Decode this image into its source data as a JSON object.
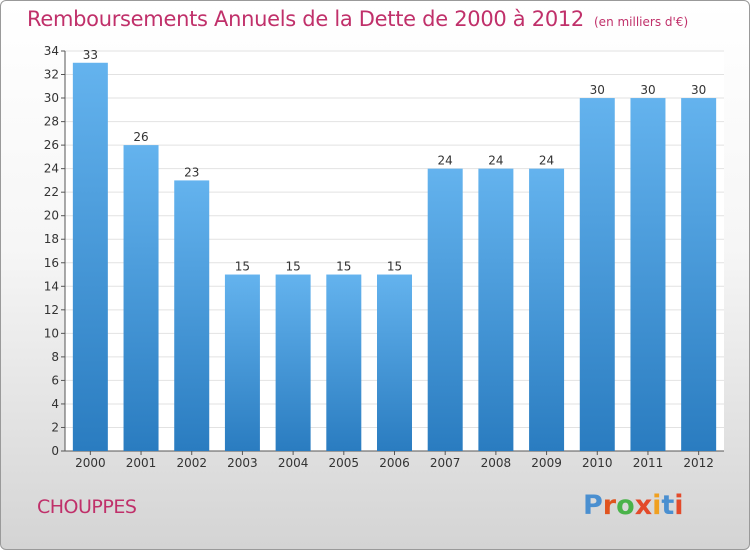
{
  "header": {
    "title": "Remboursements Annuels de la Dette de 2000 à 2012",
    "subtitle": "(en milliers d'€)"
  },
  "footer": {
    "place": "CHOUPPES",
    "logo_letters": [
      "P",
      "r",
      "o",
      "x",
      "i",
      "t",
      "i"
    ],
    "logo_colors": [
      "#4a8fd0",
      "#e0541f",
      "#4ab34a",
      "#e34a2a",
      "#f0a020",
      "#4a8fd0",
      "#e34a2a"
    ]
  },
  "colors": {
    "bar_top": "#64b3ee",
    "bar_bottom": "#2a7cc0",
    "title": "#c0306a"
  },
  "chart_data": {
    "type": "bar",
    "title": "Remboursements Annuels de la Dette de 2000 à 2012",
    "subtitle": "(en milliers d'€)",
    "categories": [
      "2000",
      "2001",
      "2002",
      "2003",
      "2004",
      "2005",
      "2006",
      "2007",
      "2008",
      "2009",
      "2010",
      "2011",
      "2012"
    ],
    "values": [
      33,
      26,
      23,
      15,
      15,
      15,
      15,
      24,
      24,
      24,
      30,
      30,
      30
    ],
    "data_labels": [
      "33",
      "26",
      "23",
      "15",
      "15",
      "15",
      "15",
      "24",
      "24",
      "24",
      "30",
      "30",
      "30"
    ],
    "ylim": [
      0,
      34
    ],
    "yticks": [
      0,
      2,
      4,
      6,
      8,
      10,
      12,
      14,
      16,
      18,
      20,
      22,
      24,
      26,
      28,
      30,
      32,
      34
    ],
    "ytick_labels": [
      "0",
      "2",
      "4",
      "6",
      "8",
      "10",
      "12",
      "14",
      "16",
      "18",
      "20",
      "22",
      "24",
      "26",
      "28",
      "30",
      "32",
      "34"
    ],
    "xlabel": "",
    "ylabel": "",
    "grid": true
  }
}
